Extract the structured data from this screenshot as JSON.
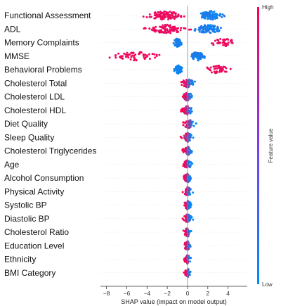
{
  "chart_data": {
    "type": "scatter",
    "subtype": "shap-beeswarm",
    "xlabel": "SHAP value (impact on model output)",
    "xlim": [
      -8.6,
      5.9
    ],
    "xticks": [
      -8,
      -6,
      -4,
      -2,
      0,
      2,
      4
    ],
    "features": [
      {
        "name": "Functional Assessment",
        "clusters": [
          {
            "center": -2.2,
            "spread": 1.7,
            "value": "high",
            "count": 110
          },
          {
            "center": 2.3,
            "spread": 1.0,
            "value": "low",
            "count": 90
          }
        ]
      },
      {
        "name": "ADL",
        "clusters": [
          {
            "center": -2.0,
            "spread": 1.6,
            "value": "high",
            "count": 100
          },
          {
            "center": 2.0,
            "spread": 1.1,
            "value": "low",
            "count": 90
          }
        ]
      },
      {
        "name": "Memory Complaints",
        "clusters": [
          {
            "center": -1.0,
            "spread": 0.35,
            "value": "low",
            "count": 70
          },
          {
            "center": 3.5,
            "spread": 1.1,
            "value": "high",
            "count": 40
          }
        ]
      },
      {
        "name": "MMSE",
        "clusters": [
          {
            "center": -5.0,
            "spread": 2.2,
            "value": "high",
            "count": 60
          },
          {
            "center": 1.0,
            "spread": 0.55,
            "value": "low",
            "count": 90
          }
        ]
      },
      {
        "name": "Behavioral Problems",
        "clusters": [
          {
            "center": -0.9,
            "spread": 0.3,
            "value": "low",
            "count": 70
          },
          {
            "center": 3.0,
            "spread": 1.0,
            "value": "high",
            "count": 40
          }
        ]
      },
      {
        "name": "Cholesterol Total",
        "clusters": [
          {
            "center": 0.0,
            "spread": 0.55,
            "value": "mixed",
            "count": 60
          }
        ]
      },
      {
        "name": "Cholesterol LDL",
        "clusters": [
          {
            "center": 0.0,
            "spread": 0.45,
            "value": "mixed",
            "count": 55
          }
        ]
      },
      {
        "name": "Cholesterol HDL",
        "clusters": [
          {
            "center": 0.0,
            "spread": 0.45,
            "value": "mixed",
            "count": 55
          }
        ]
      },
      {
        "name": "Diet Quality",
        "clusters": [
          {
            "center": 0.1,
            "spread": 0.5,
            "value": "mixed",
            "count": 55
          }
        ]
      },
      {
        "name": "Sleep Quality",
        "clusters": [
          {
            "center": 0.0,
            "spread": 0.45,
            "value": "mixed",
            "count": 55
          }
        ]
      },
      {
        "name": "Cholesterol Triglycerides",
        "clusters": [
          {
            "center": 0.0,
            "spread": 0.4,
            "value": "mixed",
            "count": 55
          }
        ]
      },
      {
        "name": "Age",
        "clusters": [
          {
            "center": 0.0,
            "spread": 0.35,
            "value": "mixed",
            "count": 50
          }
        ]
      },
      {
        "name": "Alcohol Consumption",
        "clusters": [
          {
            "center": 0.0,
            "spread": 0.35,
            "value": "mixed",
            "count": 50
          }
        ]
      },
      {
        "name": "Physical Activity",
        "clusters": [
          {
            "center": 0.0,
            "spread": 0.35,
            "value": "mixed",
            "count": 50
          }
        ]
      },
      {
        "name": "Systolic BP",
        "clusters": [
          {
            "center": 0.0,
            "spread": 0.3,
            "value": "mixed",
            "count": 50
          }
        ]
      },
      {
        "name": "Diastolic BP",
        "clusters": [
          {
            "center": 0.0,
            "spread": 0.35,
            "value": "mixed",
            "count": 50
          }
        ]
      },
      {
        "name": "Cholesterol Ratio",
        "clusters": [
          {
            "center": 0.0,
            "spread": 0.3,
            "value": "mixed",
            "count": 45
          }
        ]
      },
      {
        "name": "Education Level",
        "clusters": [
          {
            "center": 0.0,
            "spread": 0.3,
            "value": "mixed",
            "count": 45
          }
        ]
      },
      {
        "name": "Ethnicity",
        "clusters": [
          {
            "center": 0.0,
            "spread": 0.3,
            "value": "mixed",
            "count": 45
          }
        ]
      },
      {
        "name": "BMI Category",
        "clusters": [
          {
            "center": 0.0,
            "spread": 0.25,
            "value": "mixed",
            "count": 40
          }
        ]
      }
    ],
    "colorbar": {
      "label": "Feature value",
      "high_label": "High",
      "low_label": "Low",
      "high_color": "#ff0052",
      "low_color": "#008bfb"
    },
    "grid": false,
    "legend": "right"
  }
}
